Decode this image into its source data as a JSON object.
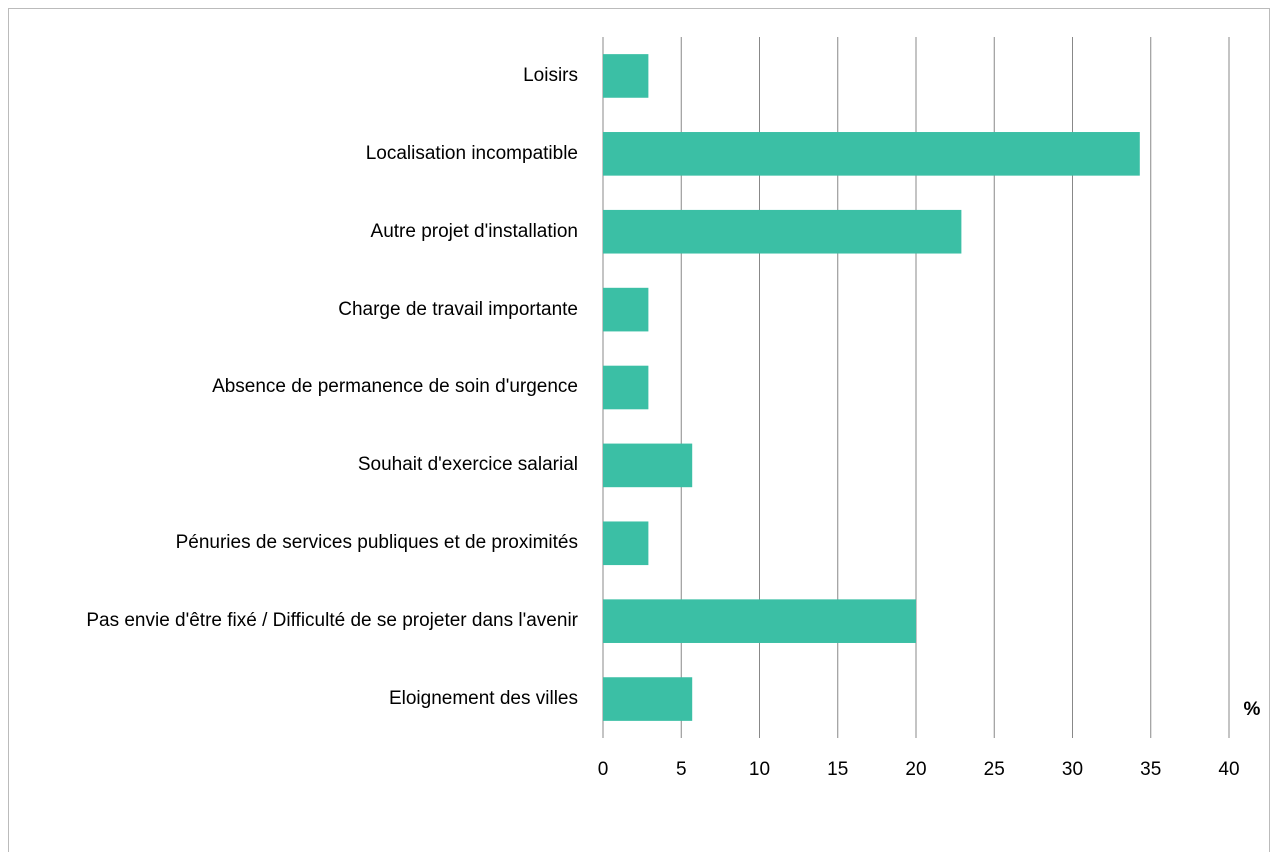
{
  "chart_data": {
    "type": "bar",
    "orientation": "horizontal",
    "categories": [
      "Loisirs",
      "Localisation incompatible",
      "Autre projet d'installation",
      "Charge de travail importante",
      "Absence de permanence de soin d'urgence",
      "Souhait d'exercice salarial",
      "Pénuries de services publiques et de proximités",
      "Pas envie d'être fixé / Difficulté de se projeter dans l'avenir",
      "Eloignement des villes"
    ],
    "values": [
      2.9,
      34.3,
      22.9,
      2.9,
      2.9,
      5.7,
      2.9,
      20.0,
      5.7
    ],
    "color": "#3bbfa5",
    "x_label": "%",
    "xlim": [
      0,
      40
    ],
    "xticks": [
      0,
      5,
      10,
      15,
      20,
      25,
      30,
      35,
      40
    ],
    "grid": true
  }
}
